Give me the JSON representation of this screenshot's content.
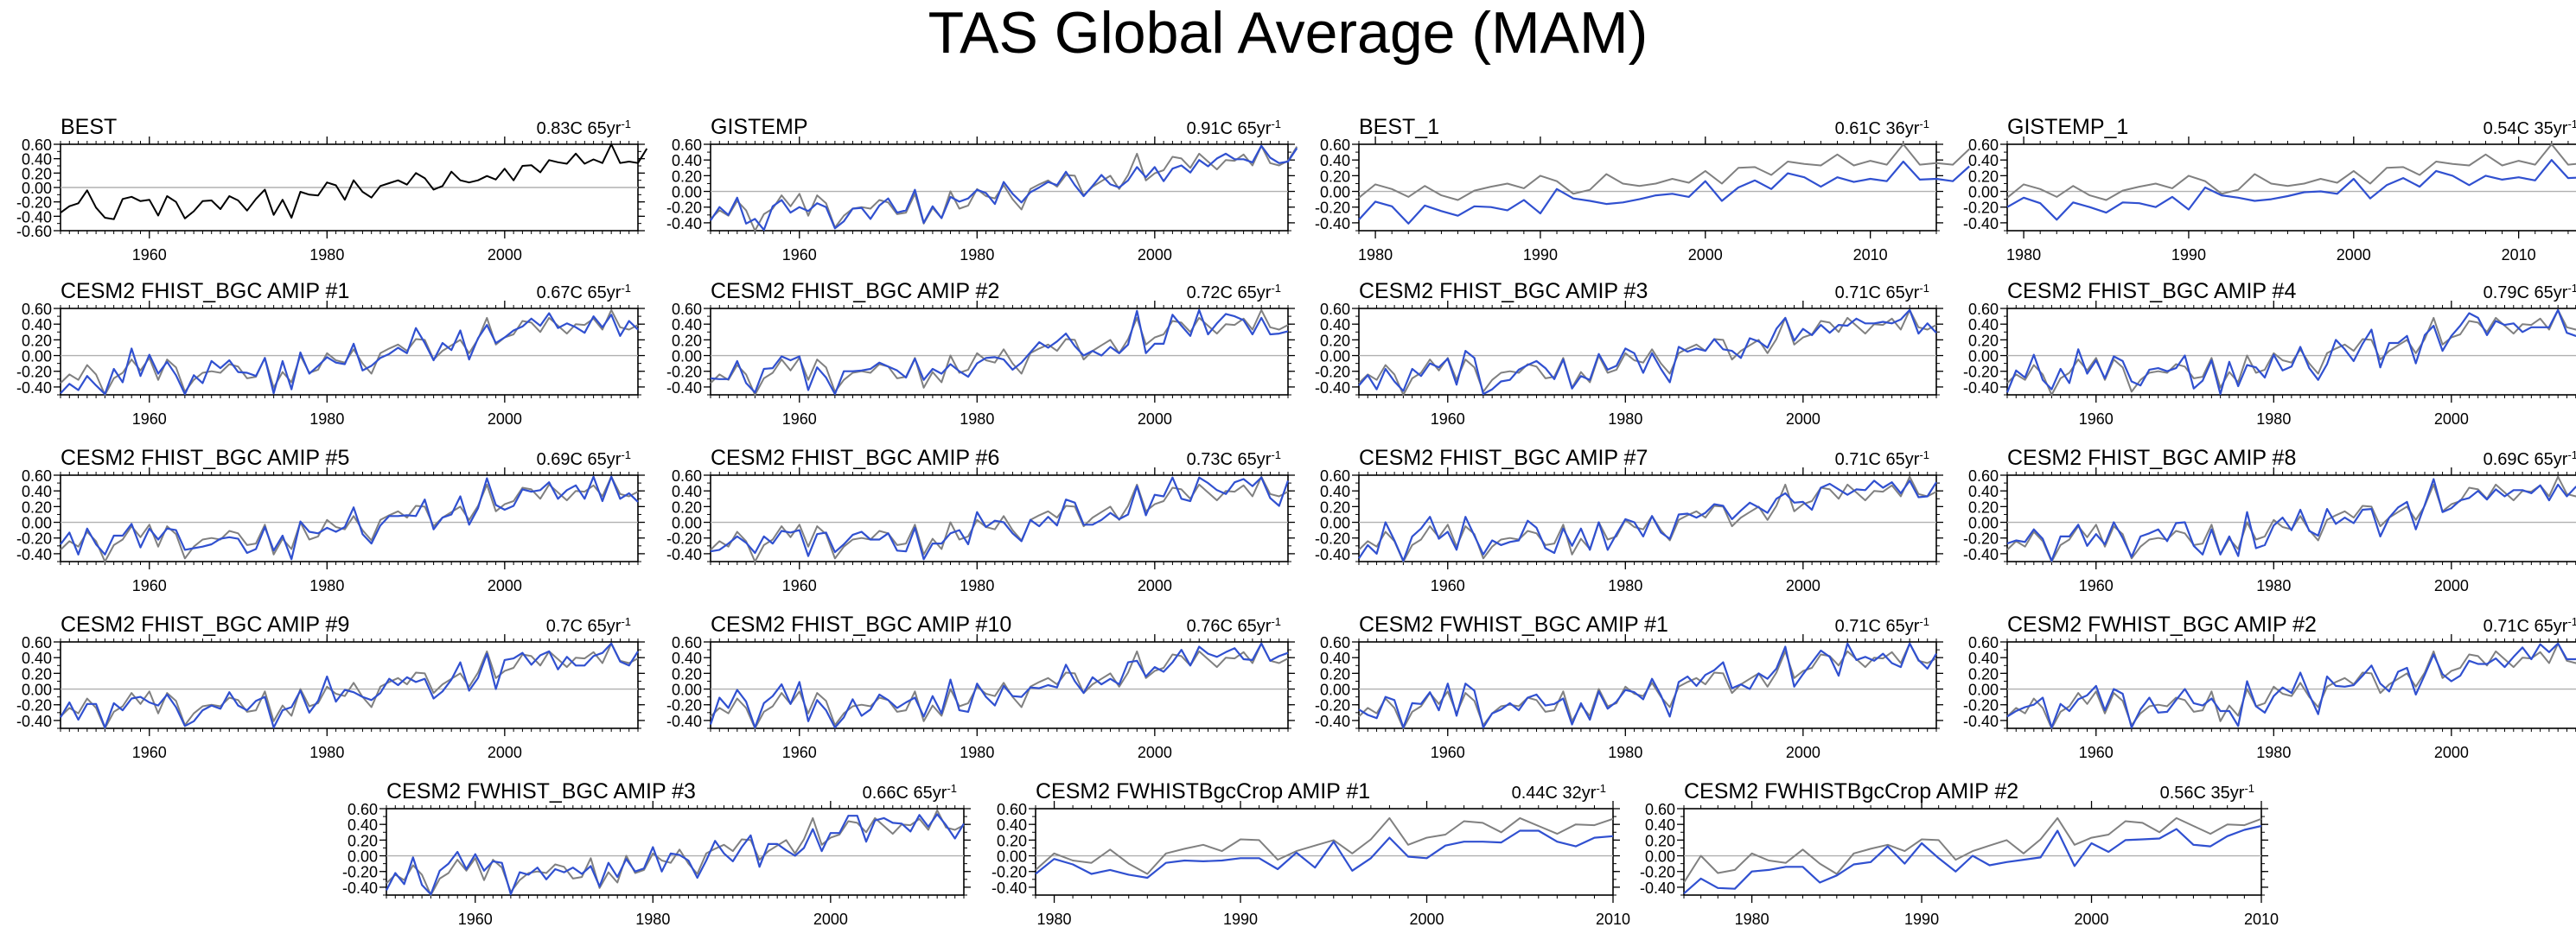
{
  "title": "TAS Global Average (MAM)",
  "colors": {
    "obs": "#808080",
    "model": "#3050d0",
    "best": "#000000",
    "zero": "#b0b0b0"
  },
  "chart_data": [
    {
      "type": "line",
      "title": "BEST",
      "trend": "0.83C 65yr",
      "xlim": [
        1950,
        2015
      ],
      "ylim": [
        -0.6,
        0.6
      ],
      "yticks": [
        "0.60",
        "0.40",
        "0.20",
        "0.00",
        "-0.20",
        "-0.40",
        "-0.60"
      ],
      "xticks": [
        1960,
        1980,
        2000
      ],
      "series": [
        {
          "values": [
            -0.35,
            -0.26,
            -0.22,
            -0.04,
            -0.28,
            -0.42,
            -0.44,
            -0.16,
            -0.13,
            -0.19,
            -0.17,
            -0.39,
            -0.12,
            -0.2,
            -0.43,
            -0.33,
            -0.19,
            -0.18,
            -0.3,
            -0.12,
            -0.18,
            -0.32,
            -0.16,
            -0.03,
            -0.38,
            -0.17,
            -0.42,
            -0.06,
            -0.1,
            -0.11,
            0.07,
            0.03,
            -0.17,
            0.1,
            -0.06,
            -0.14,
            0.02,
            0.06,
            0.1,
            0.04,
            0.2,
            0.13,
            -0.03,
            0.02,
            0.22,
            0.1,
            0.07,
            0.1,
            0.16,
            0.11,
            0.26,
            0.1,
            0.3,
            0.31,
            0.21,
            0.38,
            0.35,
            0.33,
            0.47,
            0.33,
            0.39,
            0.34,
            0.6,
            0.34,
            0.36,
            0.34,
            0.54
          ]
        }
      ]
    },
    {
      "type": "line",
      "title": "GISTEMP",
      "trend": "0.91C 65yr",
      "xlim": [
        1950,
        2015
      ],
      "ylim": [
        -0.5,
        0.6
      ],
      "yticks": [
        "0.60",
        "0.40",
        "0.20",
        "0.00",
        "-0.20",
        "-0.40"
      ],
      "xticks": [
        1960,
        1980,
        2000
      ],
      "series": [
        {
          "values": [
            -0.35,
            -0.24,
            -0.31,
            -0.12,
            -0.24,
            -0.51,
            -0.29,
            -0.22,
            -0.05,
            -0.19,
            -0.03,
            -0.31,
            -0.05,
            -0.15,
            -0.46,
            -0.31,
            -0.22,
            -0.2,
            -0.22,
            -0.11,
            -0.14,
            -0.29,
            -0.27,
            -0.03,
            -0.41,
            -0.21,
            -0.34,
            0.0,
            -0.22,
            -0.18,
            0.03,
            -0.06,
            -0.09,
            0.08,
            -0.1,
            -0.23,
            0.03,
            0.09,
            0.14,
            0.06,
            0.21,
            0.2,
            -0.05,
            0.06,
            0.13,
            0.2,
            0.03,
            0.21,
            0.48,
            0.14,
            0.23,
            0.27,
            0.44,
            0.42,
            0.3,
            0.48,
            0.38,
            0.28,
            0.4,
            0.39,
            0.47,
            0.33,
            0.58,
            0.36,
            0.33,
            0.39,
            0.57
          ]
        },
        {
          "values": [
            -0.37,
            -0.2,
            -0.3,
            -0.08,
            -0.41,
            -0.35,
            -0.49,
            -0.19,
            -0.11,
            -0.27,
            -0.2,
            -0.25,
            -0.15,
            -0.2,
            -0.47,
            -0.38,
            -0.22,
            -0.21,
            -0.35,
            -0.18,
            -0.09,
            -0.27,
            -0.24,
            0.02,
            -0.4,
            -0.19,
            -0.34,
            -0.07,
            -0.13,
            -0.09,
            0.02,
            -0.02,
            -0.16,
            0.12,
            -0.03,
            -0.14,
            -0.01,
            0.05,
            0.12,
            0.08,
            0.25,
            0.08,
            -0.06,
            0.07,
            0.21,
            0.09,
            0.05,
            0.14,
            0.31,
            0.18,
            0.31,
            0.13,
            0.29,
            0.33,
            0.24,
            0.4,
            0.32,
            0.42,
            0.48,
            0.41,
            0.41,
            0.37,
            0.58,
            0.43,
            0.36,
            0.38,
            0.55
          ]
        }
      ]
    },
    {
      "type": "line",
      "title": "BEST_1",
      "trend": "0.61C 36yr",
      "xlim": [
        1979,
        2014
      ],
      "ylim": [
        -0.5,
        0.6
      ],
      "yticks": [
        "0.60",
        "0.40",
        "0.20",
        "0.00",
        "-0.20",
        "-0.40"
      ],
      "xticks": [
        1980,
        1990,
        2000,
        2010
      ],
      "series": [
        {
          "values": [
            -0.08,
            0.09,
            0.03,
            -0.07,
            0.07,
            -0.05,
            -0.11,
            0.01,
            0.06,
            0.1,
            0.04,
            0.2,
            0.13,
            -0.03,
            0.02,
            0.22,
            0.1,
            0.07,
            0.1,
            0.16,
            0.11,
            0.26,
            0.1,
            0.3,
            0.31,
            0.21,
            0.38,
            0.35,
            0.33,
            0.47,
            0.33,
            0.39,
            0.34,
            0.6,
            0.34,
            0.36,
            0.34,
            0.54
          ]
        },
        {
          "values": [
            -0.36,
            -0.13,
            -0.19,
            -0.41,
            -0.18,
            -0.25,
            -0.31,
            -0.19,
            -0.2,
            -0.24,
            -0.11,
            -0.28,
            0.03,
            -0.09,
            -0.12,
            -0.16,
            -0.14,
            -0.1,
            -0.05,
            -0.03,
            -0.07,
            0.13,
            -0.12,
            0.05,
            0.14,
            0.03,
            0.23,
            0.18,
            0.06,
            0.18,
            0.12,
            0.16,
            0.13,
            0.38,
            0.15,
            0.16,
            0.13,
            0.32
          ]
        }
      ]
    },
    {
      "type": "line",
      "title": "GISTEMP_1",
      "trend": "0.54C 35yr",
      "xlim": [
        1979,
        2014
      ],
      "ylim": [
        -0.5,
        0.6
      ],
      "yticks": [
        "0.60",
        "0.40",
        "0.20",
        "0.00",
        "-0.20",
        "-0.40"
      ],
      "xticks": [
        1980,
        1990,
        2000,
        2010
      ],
      "series": [
        {
          "values": [
            -0.08,
            0.09,
            0.03,
            -0.07,
            0.07,
            -0.05,
            -0.11,
            0.01,
            0.06,
            0.1,
            0.04,
            0.2,
            0.13,
            -0.03,
            0.02,
            0.22,
            0.1,
            0.07,
            0.1,
            0.16,
            0.11,
            0.26,
            0.1,
            0.3,
            0.31,
            0.21,
            0.38,
            0.35,
            0.33,
            0.47,
            0.33,
            0.39,
            0.34,
            0.6,
            0.34,
            0.36,
            0.34,
            0.54
          ]
        },
        {
          "values": [
            -0.2,
            -0.08,
            -0.15,
            -0.36,
            -0.14,
            -0.2,
            -0.27,
            -0.14,
            -0.15,
            -0.2,
            -0.07,
            -0.23,
            0.05,
            -0.05,
            -0.08,
            -0.12,
            -0.1,
            -0.06,
            -0.01,
            0.0,
            -0.03,
            0.16,
            -0.09,
            0.08,
            0.17,
            0.06,
            0.26,
            0.2,
            0.08,
            0.2,
            0.15,
            0.18,
            0.14,
            0.4,
            0.17,
            0.18,
            0.16,
            0.35
          ]
        }
      ]
    },
    {
      "type": "line",
      "title": "CESM2 FHIST_BGC AMIP #1",
      "trend": "0.67C 65yr",
      "xlim": [
        1950,
        2015
      ],
      "ylim": [
        -0.5,
        0.6
      ],
      "yticks": [
        "0.60",
        "0.40",
        "0.20",
        "0.00",
        "-0.20",
        "-0.40"
      ],
      "xticks": [
        1960,
        1980,
        2000
      ],
      "series": [
        {
          "values": []
        },
        {
          "values": []
        }
      ]
    },
    {
      "type": "line",
      "title": "CESM2 FHIST_BGC AMIP #2",
      "trend": "0.72C 65yr",
      "xlim": [
        1950,
        2015
      ],
      "ylim": [
        -0.5,
        0.6
      ],
      "yticks": [
        "0.60",
        "0.40",
        "0.20",
        "0.00",
        "-0.20",
        "-0.40"
      ],
      "xticks": [
        1960,
        1980,
        2000
      ],
      "series": [
        {
          "values": []
        },
        {
          "values": []
        }
      ]
    },
    {
      "type": "line",
      "title": "CESM2 FHIST_BGC AMIP #3",
      "trend": "0.71C 65yr",
      "xlim": [
        1950,
        2015
      ],
      "ylim": [
        -0.5,
        0.6
      ],
      "yticks": [
        "0.60",
        "0.40",
        "0.20",
        "0.00",
        "-0.20",
        "-0.40"
      ],
      "xticks": [
        1960,
        1980,
        2000
      ],
      "series": [
        {
          "values": []
        },
        {
          "values": []
        }
      ]
    },
    {
      "type": "line",
      "title": "CESM2 FHIST_BGC AMIP #4",
      "trend": "0.79C 65yr",
      "xlim": [
        1950,
        2015
      ],
      "ylim": [
        -0.5,
        0.6
      ],
      "yticks": [
        "0.60",
        "0.40",
        "0.20",
        "0.00",
        "-0.20",
        "-0.40"
      ],
      "xticks": [
        1960,
        1980,
        2000
      ],
      "series": [
        {
          "values": []
        },
        {
          "values": []
        }
      ]
    },
    {
      "type": "line",
      "title": "CESM2 FHIST_BGC AMIP #5",
      "trend": "0.69C 65yr",
      "xlim": [
        1950,
        2015
      ],
      "ylim": [
        -0.5,
        0.6
      ],
      "yticks": [
        "0.60",
        "0.40",
        "0.20",
        "0.00",
        "-0.20",
        "-0.40"
      ],
      "xticks": [
        1960,
        1980,
        2000
      ],
      "series": [
        {
          "values": []
        },
        {
          "values": []
        }
      ]
    },
    {
      "type": "line",
      "title": "CESM2 FHIST_BGC AMIP #6",
      "trend": "0.73C 65yr",
      "xlim": [
        1950,
        2015
      ],
      "ylim": [
        -0.5,
        0.6
      ],
      "yticks": [
        "0.60",
        "0.40",
        "0.20",
        "0.00",
        "-0.20",
        "-0.40"
      ],
      "xticks": [
        1960,
        1980,
        2000
      ],
      "series": [
        {
          "values": []
        },
        {
          "values": []
        }
      ]
    },
    {
      "type": "line",
      "title": "CESM2 FHIST_BGC AMIP #7",
      "trend": "0.71C 65yr",
      "xlim": [
        1950,
        2015
      ],
      "ylim": [
        -0.5,
        0.6
      ],
      "yticks": [
        "0.60",
        "0.40",
        "0.20",
        "0.00",
        "-0.20",
        "-0.40"
      ],
      "xticks": [
        1960,
        1980,
        2000
      ],
      "series": [
        {
          "values": []
        },
        {
          "values": []
        }
      ]
    },
    {
      "type": "line",
      "title": "CESM2 FHIST_BGC AMIP #8",
      "trend": "0.69C 65yr",
      "xlim": [
        1950,
        2015
      ],
      "ylim": [
        -0.5,
        0.6
      ],
      "yticks": [
        "0.60",
        "0.40",
        "0.20",
        "0.00",
        "-0.20",
        "-0.40"
      ],
      "xticks": [
        1960,
        1980,
        2000
      ],
      "series": [
        {
          "values": []
        },
        {
          "values": []
        }
      ]
    },
    {
      "type": "line",
      "title": "CESM2 FHIST_BGC AMIP #9",
      "trend": "0.7C 65yr",
      "xlim": [
        1950,
        2015
      ],
      "ylim": [
        -0.5,
        0.6
      ],
      "yticks": [
        "0.60",
        "0.40",
        "0.20",
        "0.00",
        "-0.20",
        "-0.40"
      ],
      "xticks": [
        1960,
        1980,
        2000
      ],
      "series": [
        {
          "values": []
        },
        {
          "values": []
        }
      ]
    },
    {
      "type": "line",
      "title": "CESM2 FHIST_BGC AMIP #10",
      "trend": "0.76C 65yr",
      "xlim": [
        1950,
        2015
      ],
      "ylim": [
        -0.5,
        0.6
      ],
      "yticks": [
        "0.60",
        "0.40",
        "0.20",
        "0.00",
        "-0.20",
        "-0.40"
      ],
      "xticks": [
        1960,
        1980,
        2000
      ],
      "series": [
        {
          "values": []
        },
        {
          "values": []
        }
      ]
    },
    {
      "type": "line",
      "title": "CESM2 FWHIST_BGC AMIP #1",
      "trend": "0.71C 65yr",
      "xlim": [
        1950,
        2015
      ],
      "ylim": [
        -0.5,
        0.6
      ],
      "yticks": [
        "0.60",
        "0.40",
        "0.20",
        "0.00",
        "-0.20",
        "-0.40"
      ],
      "xticks": [
        1960,
        1980,
        2000
      ],
      "series": [
        {
          "values": []
        },
        {
          "values": []
        }
      ]
    },
    {
      "type": "line",
      "title": "CESM2 FWHIST_BGC AMIP #2",
      "trend": "0.71C 65yr",
      "xlim": [
        1950,
        2015
      ],
      "ylim": [
        -0.5,
        0.6
      ],
      "yticks": [
        "0.60",
        "0.40",
        "0.20",
        "0.00",
        "-0.20",
        "-0.40"
      ],
      "xticks": [
        1960,
        1980,
        2000
      ],
      "series": [
        {
          "values": []
        },
        {
          "values": []
        }
      ]
    },
    {
      "type": "line",
      "title": "CESM2 FWHIST_BGC AMIP #3",
      "trend": "0.66C 65yr",
      "xlim": [
        1950,
        2015
      ],
      "ylim": [
        -0.5,
        0.6
      ],
      "yticks": [
        "0.60",
        "0.40",
        "0.20",
        "0.00",
        "-0.20",
        "-0.40"
      ],
      "xticks": [
        1960,
        1980,
        2000
      ],
      "series": [
        {
          "values": []
        },
        {
          "values": []
        }
      ]
    },
    {
      "type": "line",
      "title": "CESM2 FWHISTBgcCrop AMIP #1",
      "trend": "0.44C 32yr",
      "xlim": [
        1979,
        2010
      ],
      "ylim": [
        -0.5,
        0.6
      ],
      "yticks": [
        "0.60",
        "0.40",
        "0.20",
        "0.00",
        "-0.20",
        "-0.40"
      ],
      "xticks": [
        1980,
        1990,
        2000,
        2010
      ],
      "series": [
        {
          "values": []
        },
        {
          "values": []
        }
      ]
    },
    {
      "type": "line",
      "title": "CESM2 FWHISTBgcCrop AMIP #2",
      "trend": "0.56C 35yr",
      "xlim": [
        1976,
        2010
      ],
      "ylim": [
        -0.5,
        0.6
      ],
      "yticks": [
        "0.60",
        "0.40",
        "0.20",
        "0.00",
        "-0.20",
        "-0.40"
      ],
      "xticks": [
        1980,
        1990,
        2000,
        2010
      ],
      "series": [
        {
          "values": []
        },
        {
          "values": []
        }
      ]
    }
  ]
}
